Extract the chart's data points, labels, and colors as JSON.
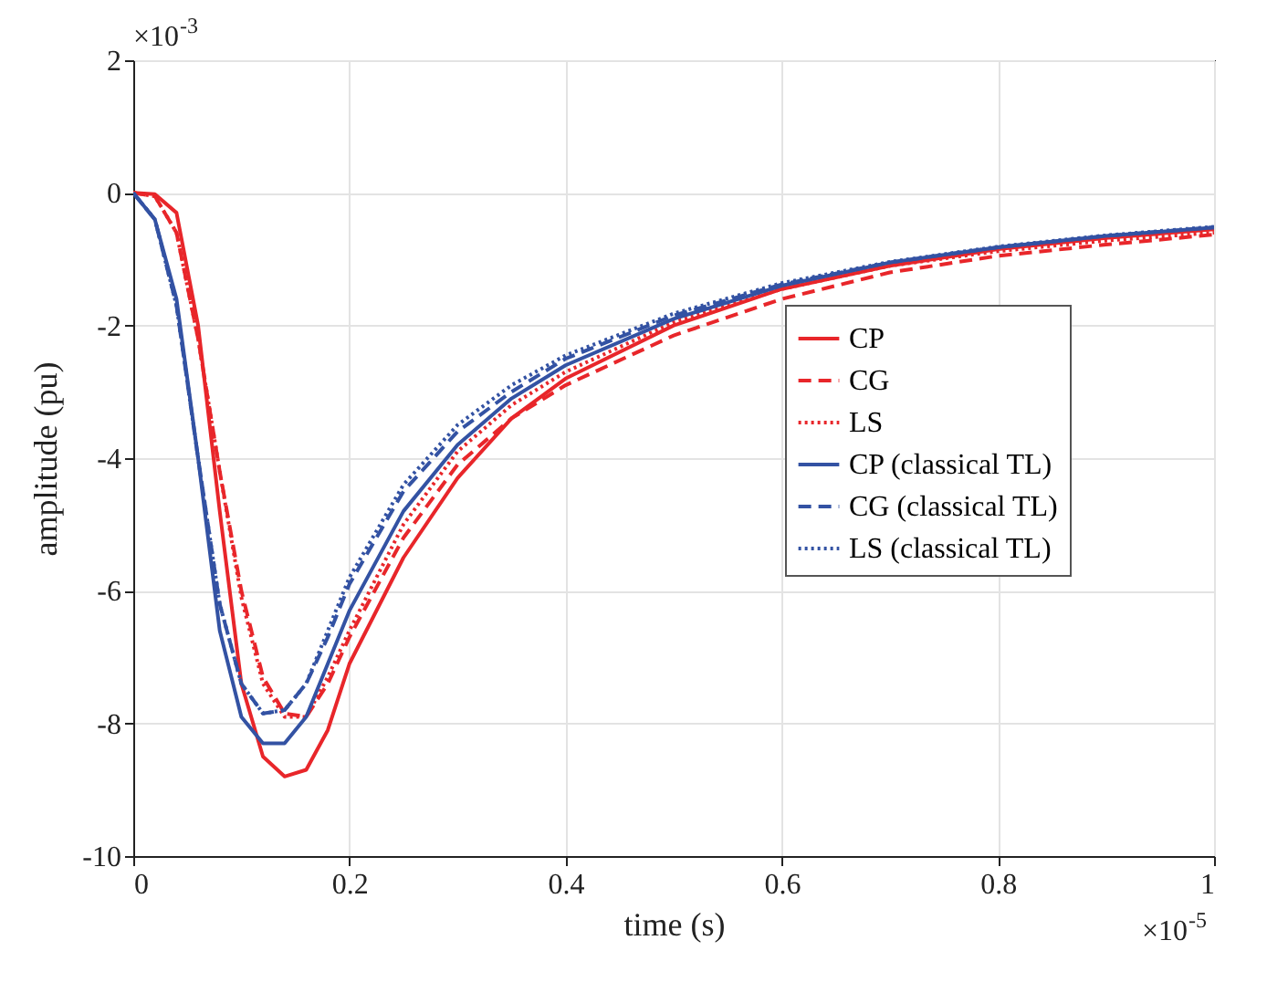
{
  "chart_data": {
    "type": "line",
    "xlabel": "time (s)",
    "ylabel": "amplitude (pu)",
    "x": [
      0,
      0.02,
      0.04,
      0.06,
      0.08,
      0.1,
      0.12,
      0.14,
      0.16,
      0.18,
      0.2,
      0.25,
      0.3,
      0.35,
      0.4,
      0.5,
      0.6,
      0.7,
      0.8,
      0.9,
      1.0
    ],
    "series": [
      {
        "name": "CP",
        "color": "#e8262a",
        "line_style": "solid",
        "values": [
          0,
          -0.02,
          -0.3,
          -2.0,
          -4.8,
          -7.4,
          -8.5,
          -8.8,
          -8.7,
          -8.1,
          -7.1,
          -5.5,
          -4.3,
          -3.4,
          -2.8,
          -2.0,
          -1.45,
          -1.1,
          -0.85,
          -0.68,
          -0.55
        ]
      },
      {
        "name": "CG",
        "color": "#e8262a",
        "line_style": "dashed",
        "values": [
          0,
          -0.05,
          -0.6,
          -2.2,
          -4.2,
          -6.0,
          -7.3,
          -7.85,
          -7.9,
          -7.4,
          -6.7,
          -5.2,
          -4.1,
          -3.4,
          -2.9,
          -2.15,
          -1.6,
          -1.2,
          -0.95,
          -0.78,
          -0.63
        ]
      },
      {
        "name": "LS",
        "color": "#e8262a",
        "line_style": "dotted",
        "values": [
          0,
          -0.05,
          -0.6,
          -2.2,
          -4.2,
          -6.1,
          -7.4,
          -7.9,
          -7.9,
          -7.3,
          -6.6,
          -5.0,
          -3.9,
          -3.2,
          -2.7,
          -1.95,
          -1.45,
          -1.1,
          -0.88,
          -0.72,
          -0.6
        ]
      },
      {
        "name": "CP (classical TL)",
        "color": "#3352a3",
        "line_style": "solid",
        "values": [
          0,
          -0.4,
          -1.6,
          -4.0,
          -6.6,
          -7.9,
          -8.3,
          -8.3,
          -7.9,
          -7.1,
          -6.3,
          -4.8,
          -3.8,
          -3.1,
          -2.6,
          -1.9,
          -1.4,
          -1.05,
          -0.82,
          -0.65,
          -0.52
        ]
      },
      {
        "name": "CG (classical TL)",
        "color": "#3352a3",
        "line_style": "dashed",
        "values": [
          0,
          -0.4,
          -1.7,
          -4.0,
          -6.2,
          -7.4,
          -7.85,
          -7.8,
          -7.4,
          -6.7,
          -5.9,
          -4.5,
          -3.6,
          -3.0,
          -2.5,
          -1.85,
          -1.38,
          -1.05,
          -0.82,
          -0.65,
          -0.52
        ]
      },
      {
        "name": "LS (classical TL)",
        "color": "#3352a3",
        "line_style": "dotted",
        "values": [
          0,
          -0.4,
          -1.7,
          -4.0,
          -6.2,
          -7.4,
          -7.85,
          -7.8,
          -7.4,
          -6.6,
          -5.8,
          -4.4,
          -3.5,
          -2.9,
          -2.45,
          -1.82,
          -1.36,
          -1.04,
          -0.81,
          -0.64,
          -0.51
        ]
      }
    ],
    "xlim": [
      0,
      1
    ],
    "xticks": [
      0,
      0.2,
      0.4,
      0.6,
      0.8,
      1
    ],
    "ylim": [
      -10,
      2
    ],
    "yticks": [
      -10,
      -8,
      -6,
      -4,
      -2,
      0,
      2
    ],
    "annotations": [
      "×10$^{-3}$",
      "×10$^{-5}$"
    ],
    "grid": true,
    "legend": "right"
  }
}
